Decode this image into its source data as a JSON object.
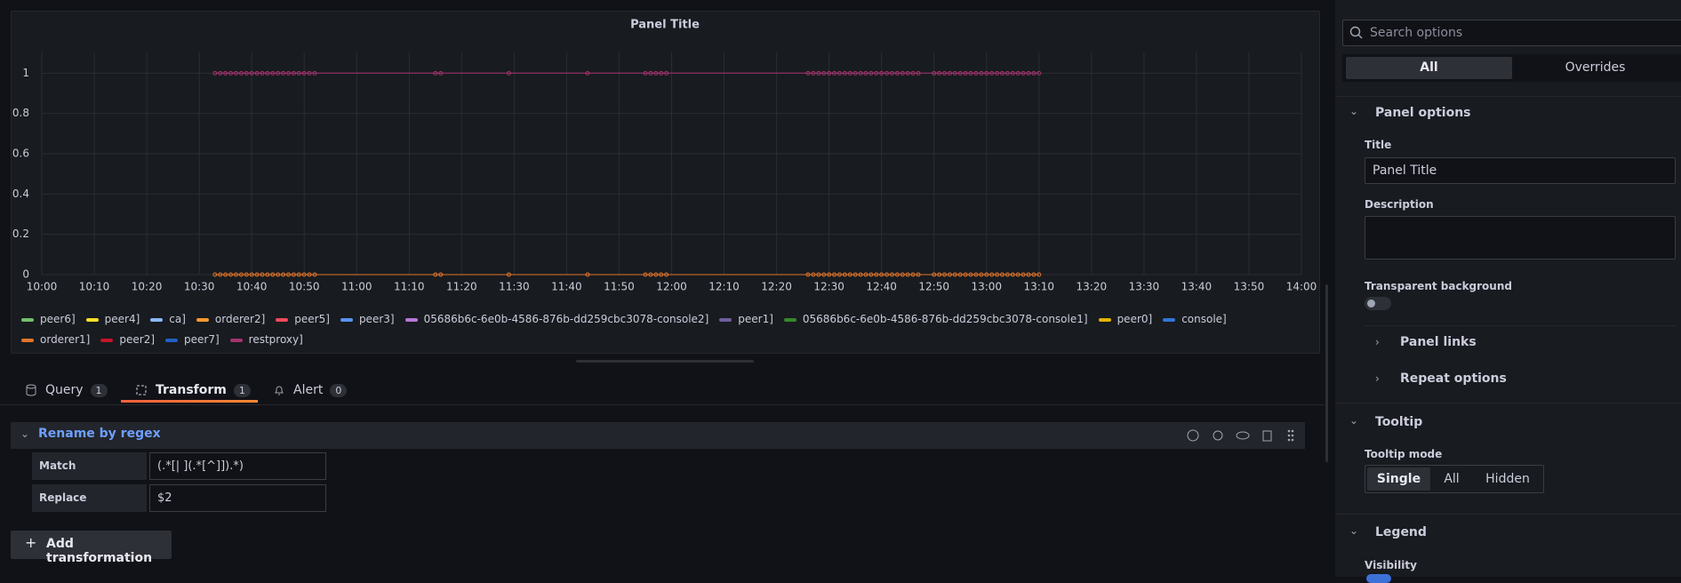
{
  "chart_data": {
    "type": "line",
    "title": "Panel Title",
    "xlim": [
      "10:00",
      "14:00"
    ],
    "xticks": [
      "10:00",
      "10:10",
      "10:20",
      "10:30",
      "10:40",
      "10:50",
      "11:00",
      "11:10",
      "11:20",
      "11:30",
      "11:40",
      "11:50",
      "12:00",
      "12:10",
      "12:20",
      "12:30",
      "12:40",
      "12:50",
      "13:00",
      "13:10",
      "13:20",
      "13:30",
      "13:40",
      "13:50",
      "14:00"
    ],
    "ylim": [
      0,
      1.05
    ],
    "yticks": [
      0,
      0.2,
      0.4,
      0.6,
      0.8,
      1
    ],
    "grid": true,
    "x": [
      "10:33",
      "10:34",
      "10:35",
      "10:36",
      "10:37",
      "10:38",
      "10:39",
      "10:40",
      "10:41",
      "10:42",
      "10:43",
      "10:44",
      "10:45",
      "10:46",
      "10:47",
      "10:48",
      "10:49",
      "10:50",
      "10:51",
      "10:52",
      "11:15",
      "11:16",
      "11:29",
      "11:44",
      "11:55",
      "11:56",
      "11:57",
      "11:58",
      "11:59",
      "12:26",
      "12:27",
      "12:28",
      "12:29",
      "12:30",
      "12:31",
      "12:32",
      "12:33",
      "12:34",
      "12:35",
      "12:36",
      "12:37",
      "12:38",
      "12:39",
      "12:40",
      "12:41",
      "12:42",
      "12:43",
      "12:44",
      "12:45",
      "12:46",
      "12:47",
      "12:50",
      "12:51",
      "12:52",
      "12:53",
      "12:54",
      "12:55",
      "12:56",
      "12:57",
      "12:58",
      "12:59",
      "13:00",
      "13:01",
      "13:02",
      "13:03",
      "13:04",
      "13:05",
      "13:06",
      "13:07",
      "13:08",
      "13:09",
      "13:10"
    ],
    "series": [
      {
        "name": "peer6]",
        "color": "#73bf69"
      },
      {
        "name": "peer4]",
        "color": "#fade2a"
      },
      {
        "name": "ca]",
        "color": "#8ab8ff"
      },
      {
        "name": "orderer2]",
        "color": "#ff9830"
      },
      {
        "name": "peer5]",
        "color": "#f2495c"
      },
      {
        "name": "peer3]",
        "color": "#5794f2"
      },
      {
        "name": "05686b6c-6e0b-4586-876b-dd259cbc3078-console2]",
        "color": "#b877d9"
      },
      {
        "name": "peer1]",
        "color": "#705da0"
      },
      {
        "name": "05686b6c-6e0b-4586-876b-dd259cbc3078-console1]",
        "color": "#37872d"
      },
      {
        "name": "peer0]",
        "color": "#e0b400"
      },
      {
        "name": "console]",
        "color": "#3274d9"
      },
      {
        "name": "orderer1]",
        "color": "#e0752d",
        "values": [
          0,
          0,
          0,
          0,
          0,
          0,
          0,
          0,
          0,
          0,
          0,
          0,
          0,
          0,
          0,
          0,
          0,
          0,
          0,
          0,
          0,
          0,
          0,
          0,
          0,
          0,
          0,
          0,
          0,
          0,
          0,
          0,
          0,
          0,
          0,
          0,
          0,
          0,
          0,
          0,
          0,
          0,
          0,
          0,
          0,
          0,
          0,
          0,
          0,
          0,
          0,
          0,
          0,
          0,
          0,
          0,
          0,
          0,
          0,
          0,
          0,
          0,
          0,
          0,
          0,
          0,
          0,
          0,
          0,
          0,
          0,
          0
        ]
      },
      {
        "name": "peer2]",
        "color": "#c4162a"
      },
      {
        "name": "peer7]",
        "color": "#1f60c4"
      },
      {
        "name": "restproxy]",
        "color": "#a3336e",
        "values": [
          1,
          1,
          1,
          1,
          1,
          1,
          1,
          1,
          1,
          1,
          1,
          1,
          1,
          1,
          1,
          1,
          1,
          1,
          1,
          1,
          1,
          1,
          1,
          1,
          1,
          1,
          1,
          1,
          1,
          1,
          1,
          1,
          1,
          1,
          1,
          1,
          1,
          1,
          1,
          1,
          1,
          1,
          1,
          1,
          1,
          1,
          1,
          1,
          1,
          1,
          1,
          1,
          1,
          1,
          1,
          1,
          1,
          1,
          1,
          1,
          1,
          1,
          1,
          1,
          1,
          1,
          1,
          1,
          1,
          1,
          1,
          1
        ]
      }
    ]
  },
  "tabs": [
    {
      "label": "Query",
      "count": 1
    },
    {
      "label": "Transform",
      "count": 1
    },
    {
      "label": "Alert",
      "count": 0
    }
  ],
  "transformation": {
    "title": "Rename by regex",
    "fields": [
      {
        "label": "Match",
        "value": "(.*[| ](.*[^]]).*)"
      },
      {
        "label": "Replace",
        "value": "$2"
      }
    ]
  },
  "add_button": "Add transformation",
  "options": {
    "search": "Search options",
    "modes": [
      "All",
      "Overrides"
    ],
    "panel_options": {
      "heading": "Panel options",
      "title_label": "Title",
      "title_value": "Panel Title",
      "description_label": "Description",
      "transparent_label": "Transparent background",
      "panel_links": "Panel links",
      "repeat_options": "Repeat options"
    },
    "tooltip": {
      "heading": "Tooltip",
      "mode_label": "Tooltip mode",
      "modes": [
        "Single",
        "All",
        "Hidden"
      ]
    },
    "legend": {
      "heading": "Legend",
      "visibility_label": "Visibility"
    }
  }
}
